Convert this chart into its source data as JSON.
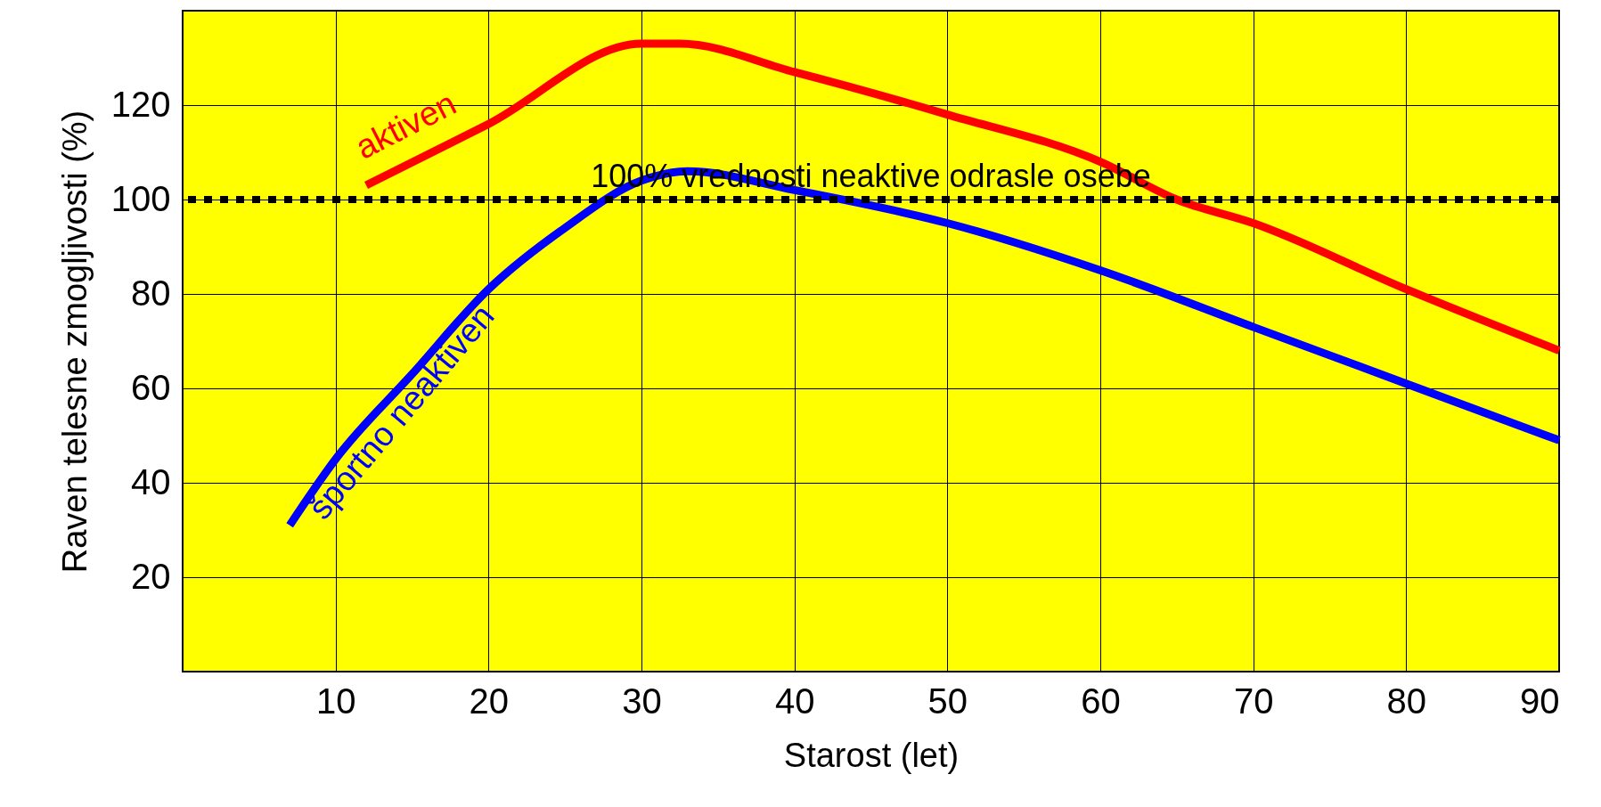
{
  "chart_data": {
    "type": "line",
    "xlabel": "Starost (let)",
    "ylabel": "Raven telesne zmogljivosti (%)",
    "xlim": [
      0,
      90
    ],
    "ylim": [
      0,
      140
    ],
    "xticks": [
      10,
      20,
      30,
      40,
      50,
      60,
      70,
      80,
      90
    ],
    "yticks": [
      20,
      40,
      60,
      80,
      100,
      120
    ],
    "grid": true,
    "marker": "none",
    "line_style": "solid",
    "series": [
      {
        "name": "aktiven",
        "color": "#ff0000",
        "x": [
          12,
          20,
          30,
          32.5,
          40,
          50,
          60,
          65,
          70,
          80,
          90
        ],
        "values": [
          103,
          116,
          133,
          133,
          127,
          118,
          108,
          100,
          95,
          81,
          68
        ]
      },
      {
        "name": "športno neaktiven",
        "color": "#0000ff",
        "x": [
          7,
          10,
          15,
          20,
          25,
          30,
          33,
          40,
          50,
          60,
          70,
          80,
          90
        ],
        "values": [
          31,
          45,
          63,
          81,
          94,
          104,
          106,
          102,
          95,
          85,
          73,
          61,
          49
        ]
      }
    ],
    "ref_lines": [
      {
        "axis": "y",
        "value": 100,
        "label": "100% vrednosti neaktive odrasle osebe",
        "color": "#000000",
        "line_style": "dotted"
      }
    ]
  }
}
